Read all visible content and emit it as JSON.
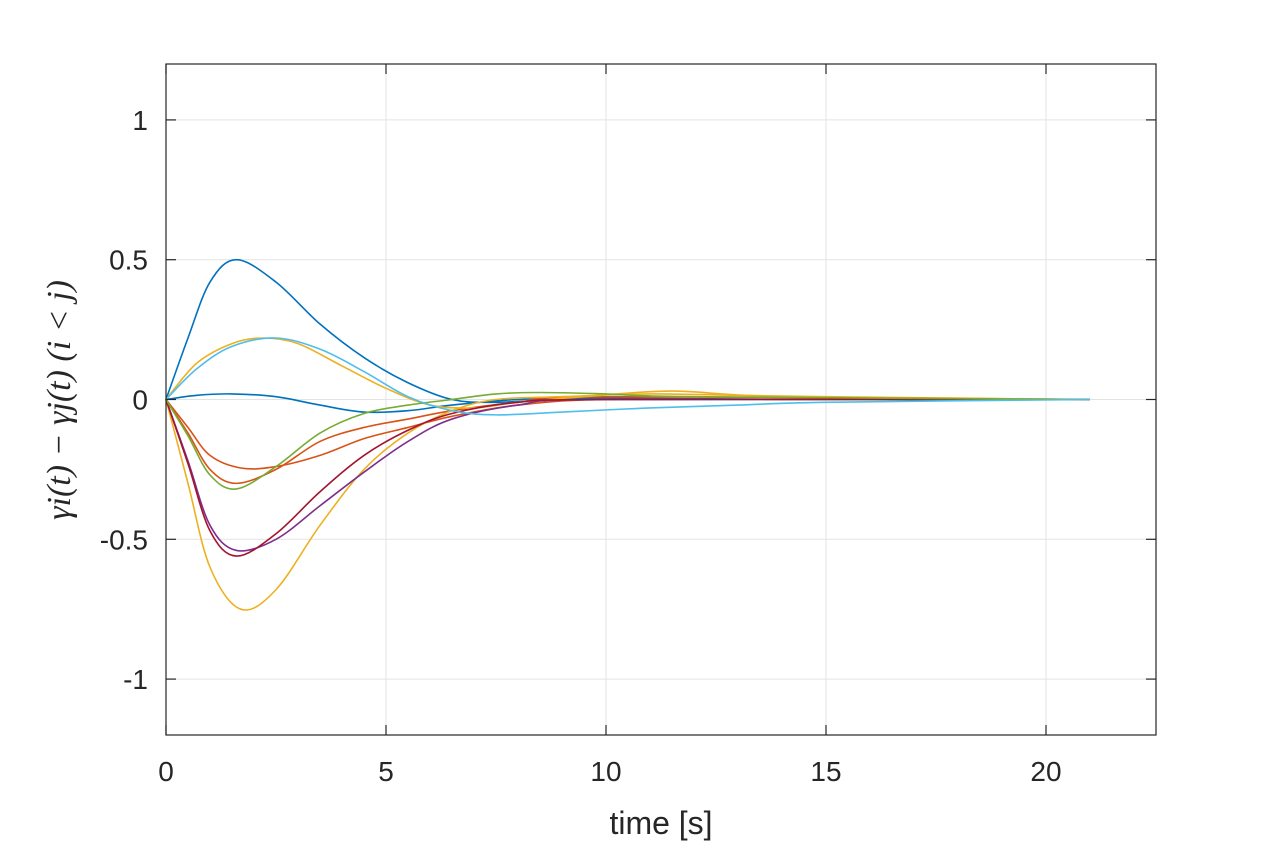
{
  "chart_data": {
    "type": "line",
    "title": "",
    "xlabel": "time [s]",
    "ylabel": "γi(t) − γj(t)  (i < j)",
    "xlim": [
      0,
      22.5
    ],
    "ylim": [
      -1.2,
      1.2
    ],
    "xticks": [
      0,
      5,
      10,
      15,
      20
    ],
    "yticks": [
      -1,
      -0.5,
      0,
      0.5,
      1
    ],
    "xtick_labels": [
      "0",
      "5",
      "10",
      "15",
      "20"
    ],
    "ytick_labels": [
      "-1",
      "-0.5",
      "0",
      "0.5",
      "1"
    ],
    "grid": true,
    "legend": "none",
    "series": [
      {
        "name": "pair-1",
        "color": "#0072BD",
        "x": [
          0,
          0.5,
          1,
          1.6,
          2.5,
          3.5,
          4.5,
          5.5,
          6.5,
          7.5,
          9,
          12,
          15,
          21
        ],
        "y": [
          0,
          0.22,
          0.42,
          0.5,
          0.42,
          0.27,
          0.15,
          0.06,
          0.0,
          -0.01,
          0.0,
          0.0,
          0.0,
          0.0
        ]
      },
      {
        "name": "pair-2",
        "color": "#0072BD",
        "x": [
          0,
          0.7,
          1.5,
          2.5,
          3.5,
          4.5,
          5.5,
          6.5,
          8,
          10,
          15,
          21
        ],
        "y": [
          0,
          0.015,
          0.02,
          0.01,
          -0.02,
          -0.045,
          -0.04,
          -0.02,
          0.0,
          0.005,
          0.0,
          0.0
        ]
      },
      {
        "name": "pair-3",
        "color": "#D95319",
        "x": [
          0,
          0.5,
          1,
          1.7,
          2.5,
          3.5,
          4.5,
          5.5,
          6.5,
          8,
          10,
          15,
          21
        ],
        "y": [
          0,
          -0.1,
          -0.2,
          -0.245,
          -0.24,
          -0.2,
          -0.14,
          -0.1,
          -0.06,
          -0.02,
          0.0,
          0.0,
          0.0
        ]
      },
      {
        "name": "pair-4",
        "color": "#D95319",
        "x": [
          0,
          0.5,
          1,
          1.6,
          2.5,
          3.5,
          4.5,
          5.5,
          6.5,
          8,
          10,
          21
        ],
        "y": [
          0,
          -0.12,
          -0.25,
          -0.3,
          -0.25,
          -0.15,
          -0.1,
          -0.07,
          -0.04,
          -0.01,
          0.01,
          0.0
        ]
      },
      {
        "name": "pair-5",
        "color": "#EDB120",
        "x": [
          0,
          0.5,
          1,
          1.7,
          2.5,
          3.5,
          4.5,
          5.5,
          6.5,
          7.5,
          9,
          11,
          13,
          15,
          21
        ],
        "y": [
          0,
          -0.3,
          -0.6,
          -0.75,
          -0.68,
          -0.45,
          -0.25,
          -0.12,
          -0.04,
          0.0,
          0.01,
          0.02,
          0.015,
          0.01,
          0.0
        ]
      },
      {
        "name": "pair-6",
        "color": "#EDB120",
        "x": [
          0,
          0.7,
          1.5,
          2.2,
          3,
          4,
          5,
          6,
          7,
          8,
          9.5,
          11.5,
          14,
          21
        ],
        "y": [
          0,
          0.13,
          0.2,
          0.22,
          0.2,
          0.12,
          0.04,
          -0.02,
          -0.03,
          -0.01,
          0.01,
          0.03,
          0.01,
          0.0
        ]
      },
      {
        "name": "pair-7",
        "color": "#7E2F8E",
        "x": [
          0,
          0.5,
          1,
          1.6,
          2.5,
          3.5,
          4.5,
          5.5,
          6.5,
          8,
          10,
          21
        ],
        "y": [
          0,
          -0.22,
          -0.45,
          -0.54,
          -0.5,
          -0.38,
          -0.26,
          -0.15,
          -0.07,
          -0.02,
          0.0,
          0.0
        ]
      },
      {
        "name": "pair-8",
        "color": "#A2142F",
        "x": [
          0,
          0.5,
          1,
          1.6,
          2.5,
          3.5,
          4.5,
          5.5,
          6.5,
          8,
          10,
          21
        ],
        "y": [
          0,
          -0.23,
          -0.47,
          -0.56,
          -0.48,
          -0.33,
          -0.2,
          -0.11,
          -0.05,
          -0.01,
          0.0,
          0.0
        ]
      },
      {
        "name": "pair-9",
        "color": "#77AC30",
        "x": [
          0,
          0.5,
          1,
          1.6,
          2.5,
          3.5,
          4.5,
          5.5,
          6.5,
          7.5,
          8.5,
          10,
          12,
          21
        ],
        "y": [
          0,
          -0.13,
          -0.27,
          -0.32,
          -0.24,
          -0.12,
          -0.05,
          -0.02,
          0.0,
          0.02,
          0.025,
          0.02,
          0.01,
          0.0
        ]
      },
      {
        "name": "pair-10",
        "color": "#4DBEEE",
        "x": [
          0,
          0.7,
          1.5,
          2.5,
          3.5,
          4.5,
          5.5,
          6.5,
          7.5,
          9,
          11,
          13,
          15,
          21
        ],
        "y": [
          0,
          0.11,
          0.19,
          0.22,
          0.18,
          0.1,
          0.01,
          -0.04,
          -0.055,
          -0.045,
          -0.03,
          -0.02,
          -0.01,
          0.0
        ]
      }
    ]
  }
}
